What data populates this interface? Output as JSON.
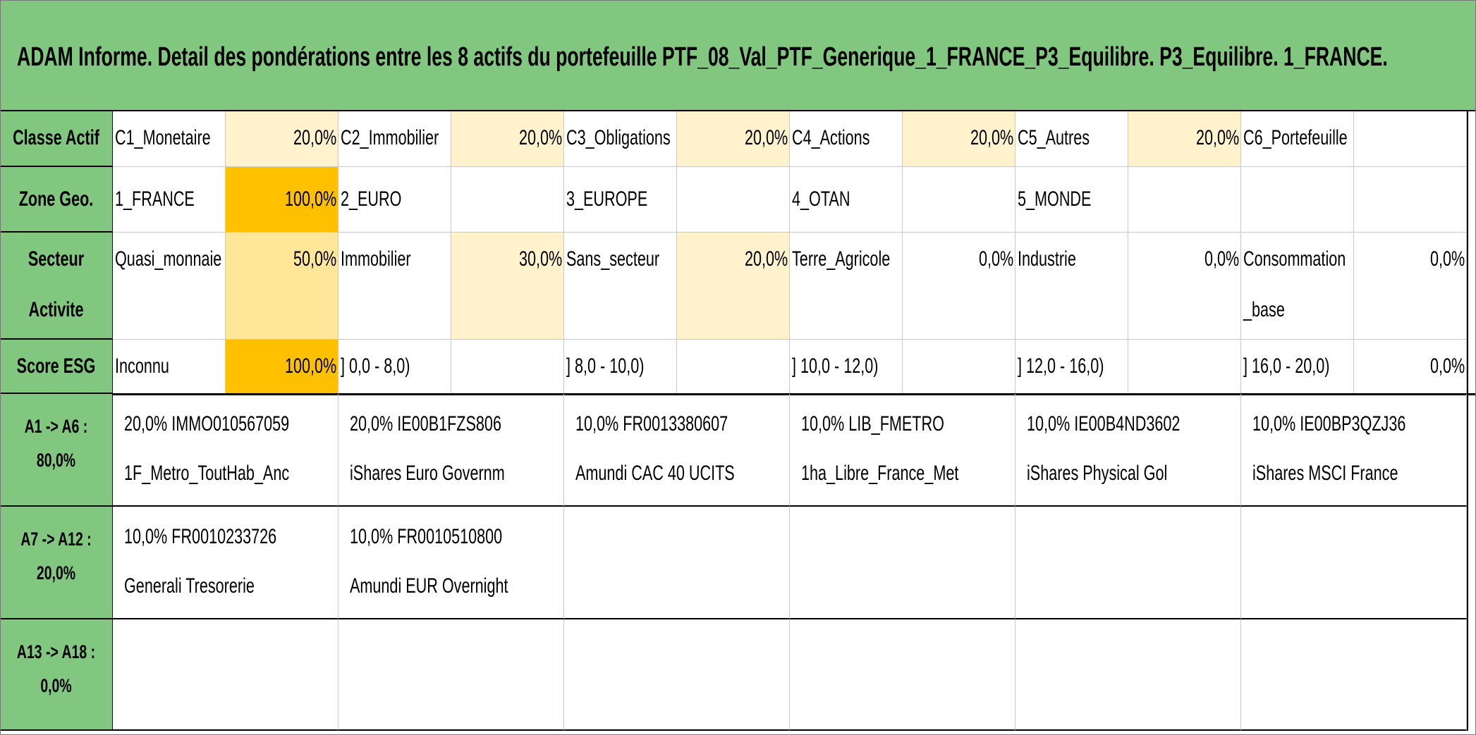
{
  "header": {
    "title": "ADAM Informe. Detail des pondérations entre les 8 actifs du portefeuille PTF_08_Val_PTF_Generique_1_FRANCE_P3_Equilibre. P3_Equilibre. 1_FRANCE."
  },
  "attributes": [
    {
      "label": "Classe Actif",
      "cells": [
        {
          "name": "C1_Monetaire",
          "value": "20,0%",
          "fill": "#fff2cc"
        },
        {
          "name": "C2_Immobilier",
          "value": "20,0%",
          "fill": "#fff2cc"
        },
        {
          "name": "C3_Obligations",
          "value": "20,0%",
          "fill": "#fff2cc"
        },
        {
          "name": "C4_Actions",
          "value": "20,0%",
          "fill": "#fff2cc"
        },
        {
          "name": "C5_Autres",
          "value": "20,0%",
          "fill": "#fff2cc"
        },
        {
          "name": "C6_Portefeuille"
        }
      ]
    },
    {
      "label": "Zone Geo.",
      "cells": [
        {
          "name": "1_FRANCE",
          "value": "100,0%",
          "fill": "#ffc000"
        },
        {
          "name": "2_EURO"
        },
        {
          "name": "3_EUROPE"
        },
        {
          "name": "4_OTAN"
        },
        {
          "name": "5_MONDE"
        },
        null
      ]
    },
    {
      "label": "Secteur Activite",
      "cells": [
        {
          "name": "Quasi_monnaie",
          "value": "50,0%",
          "fill": "#ffe699"
        },
        {
          "name": "Immobilier",
          "value": "30,0%",
          "fill": "#fff2cc"
        },
        {
          "name": "Sans_secteur",
          "value": "20,0%",
          "fill": "#fff2cc"
        },
        {
          "name": "Terre_Agricole",
          "value": "0,0%"
        },
        {
          "name": "Industrie",
          "value": "0,0%"
        },
        {
          "name": "Consommation_base",
          "value": "0,0%"
        }
      ]
    },
    {
      "label": "Score ESG",
      "cells": [
        {
          "name": "Inconnu",
          "value": "100,0%",
          "fill": "#ffc000"
        },
        {
          "name": "] 0,0 - 8,0)"
        },
        {
          "name": "] 8,0 - 10,0)"
        },
        {
          "name": "] 10,0 - 12,0)"
        },
        {
          "name": "] 12,0 - 16,0)"
        },
        {
          "name": "] 16,0 - 20,0)",
          "value": "0,0%"
        }
      ]
    }
  ],
  "assets": [
    {
      "label": "A1 -> A6 :",
      "total": "80,0%",
      "items": [
        {
          "weight": "20,0%",
          "code": "IMMO010567059",
          "name": "1F_Metro_ToutHab_Anc"
        },
        {
          "weight": "20,0%",
          "code": "IE00B1FZS806",
          "name": "iShares Euro Governm"
        },
        {
          "weight": "10,0%",
          "code": "FR0013380607",
          "name": "Amundi CAC 40 UCITS"
        },
        {
          "weight": "10,0%",
          "code": "LIB_FMETRO",
          "name": "1ha_Libre_France_Met"
        },
        {
          "weight": "10,0%",
          "code": "IE00B4ND3602",
          "name": "iShares Physical Gol"
        },
        {
          "weight": "10,0%",
          "code": "IE00BP3QZJ36",
          "name": "iShares MSCI France"
        }
      ]
    },
    {
      "label": "A7 -> A12 :",
      "total": "20,0%",
      "items": [
        {
          "weight": "10,0%",
          "code": "FR0010233726",
          "name": "Generali Tresorerie"
        },
        {
          "weight": "10,0%",
          "code": "FR0010510800",
          "name": "Amundi EUR Overnight"
        }
      ]
    },
    {
      "label": "A13 -> A18 :",
      "total": "0,0%",
      "items": []
    }
  ]
}
